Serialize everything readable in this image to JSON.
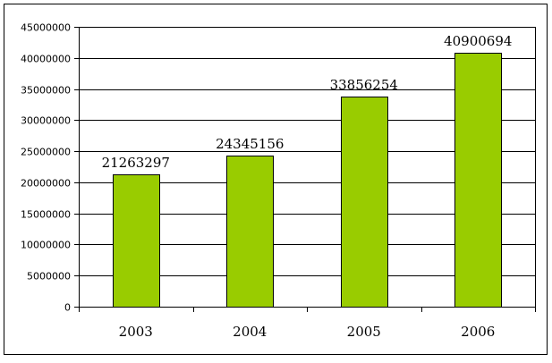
{
  "chart_data": {
    "type": "bar",
    "categories": [
      "2003",
      "2004",
      "2005",
      "2006"
    ],
    "values": [
      21263297,
      24345156,
      33856254,
      40900694
    ],
    "data_labels": [
      "21263297",
      "24345156",
      "33856254",
      "40900694"
    ],
    "title": "",
    "xlabel": "",
    "ylabel": "",
    "ylim": [
      0,
      45000000
    ],
    "yticks": [
      0,
      5000000,
      10000000,
      15000000,
      20000000,
      25000000,
      30000000,
      35000000,
      40000000,
      45000000
    ],
    "ytick_labels": [
      "0",
      "5000000",
      "10000000",
      "15000000",
      "20000000",
      "25000000",
      "30000000",
      "35000000",
      "40000000",
      "45000000"
    ],
    "grid": true,
    "legend": "none",
    "bar_color": "#99cc00",
    "bar_edge_color": "#000000",
    "gridline_color": "#000000",
    "frame_color": "#000000"
  }
}
